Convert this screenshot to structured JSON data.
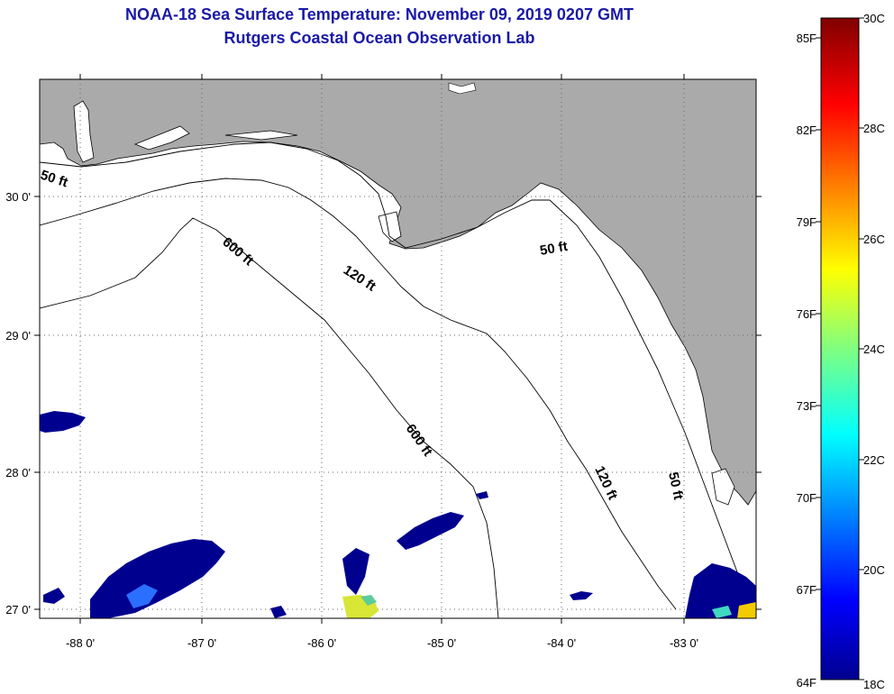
{
  "header": {
    "title_line1": "NOAA-18 Sea Surface Temperature:  November 09, 2019 0207 GMT",
    "title_line2": "Rutgers Coastal Ocean Observation Lab"
  },
  "map": {
    "longitude_labels": [
      "-88 0'",
      "-87 0'",
      "-86 0'",
      "-85 0'",
      "-84 0'",
      "-83 0'"
    ],
    "latitude_labels": [
      "30 0'",
      "29 0'",
      "28 0'",
      "27 0'"
    ],
    "bounds": {
      "lon": [
        -88.33,
        -82.42
      ],
      "lat": [
        26.9,
        30.85
      ]
    },
    "land_color": "#aaaaaa",
    "contours": [
      "50 ft",
      "120 ft",
      "600 ft"
    ],
    "contour_labels": {
      "c50_west": "50 ft",
      "c50_east": "50 ft",
      "c50_south": "50 ft",
      "c120_north": "120 ft",
      "c120_south": "120 ft",
      "c600_north": "600 ft",
      "c600_south": "600 ft"
    }
  },
  "colorbar": {
    "fahrenheit_labels": [
      "85F",
      "82F",
      "79F",
      "76F",
      "73F",
      "70F",
      "67F",
      "64F"
    ],
    "celsius_labels": [
      "30C",
      "28C",
      "26C",
      "24C",
      "22C",
      "20C",
      "18C"
    ],
    "colormap": "jet",
    "colors": [
      "#00008f",
      "#0000ff",
      "#0080ff",
      "#00ffff",
      "#80ff80",
      "#ffff00",
      "#ff8000",
      "#ff0000",
      "#800000"
    ]
  }
}
